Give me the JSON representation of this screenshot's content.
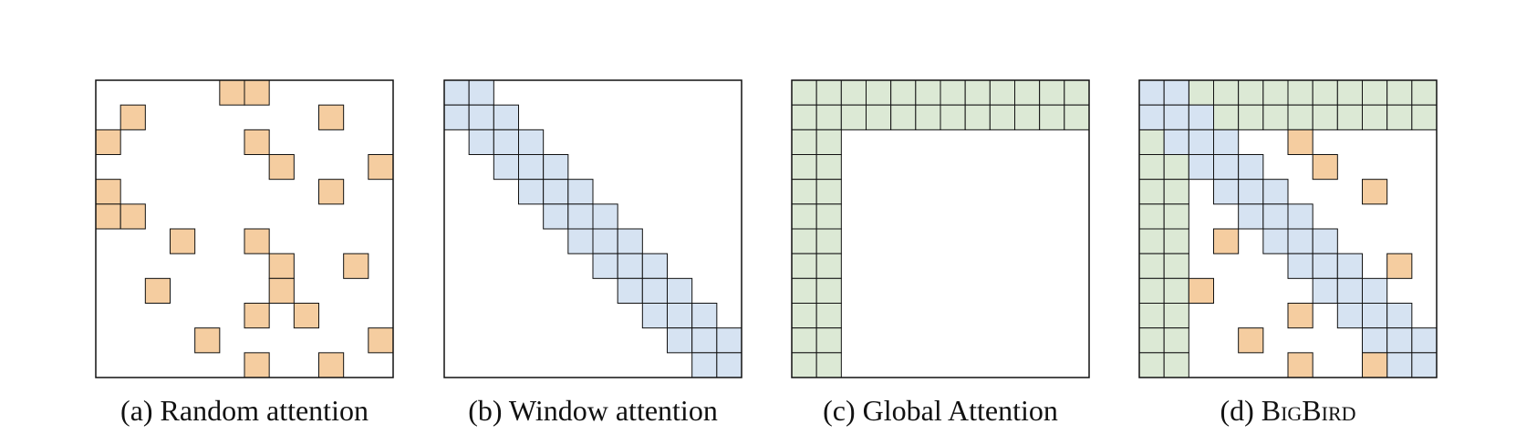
{
  "grid_size": 12,
  "colors": {
    "random": "#f5cda0",
    "window": "#d6e3f2",
    "global": "#dce9d5",
    "cell_stroke": "#111111",
    "frame_stroke": "#111111",
    "background": "#ffffff"
  },
  "panels": [
    {
      "key": "random",
      "caption": {
        "prefix": "(a)",
        "text": "Random attention"
      },
      "cells": {
        "random": [
          [
            0,
            5
          ],
          [
            0,
            6
          ],
          [
            1,
            1
          ],
          [
            1,
            9
          ],
          [
            2,
            0
          ],
          [
            2,
            6
          ],
          [
            3,
            7
          ],
          [
            3,
            11
          ],
          [
            4,
            0
          ],
          [
            4,
            9
          ],
          [
            5,
            0
          ],
          [
            5,
            1
          ],
          [
            6,
            3
          ],
          [
            6,
            6
          ],
          [
            7,
            7
          ],
          [
            7,
            10
          ],
          [
            8,
            2
          ],
          [
            8,
            7
          ],
          [
            9,
            6
          ],
          [
            9,
            8
          ],
          [
            10,
            4
          ],
          [
            10,
            11
          ],
          [
            11,
            6
          ],
          [
            11,
            9
          ]
        ]
      }
    },
    {
      "key": "window",
      "caption": {
        "prefix": "(b)",
        "text": "Window attention"
      },
      "cells": {
        "window": [
          [
            0,
            0
          ],
          [
            0,
            1
          ],
          [
            1,
            0
          ],
          [
            1,
            1
          ],
          [
            1,
            2
          ],
          [
            2,
            1
          ],
          [
            2,
            2
          ],
          [
            2,
            3
          ],
          [
            3,
            2
          ],
          [
            3,
            3
          ],
          [
            3,
            4
          ],
          [
            4,
            3
          ],
          [
            4,
            4
          ],
          [
            4,
            5
          ],
          [
            5,
            4
          ],
          [
            5,
            5
          ],
          [
            5,
            6
          ],
          [
            6,
            5
          ],
          [
            6,
            6
          ],
          [
            6,
            7
          ],
          [
            7,
            6
          ],
          [
            7,
            7
          ],
          [
            7,
            8
          ],
          [
            8,
            7
          ],
          [
            8,
            8
          ],
          [
            8,
            9
          ],
          [
            9,
            8
          ],
          [
            9,
            9
          ],
          [
            9,
            10
          ],
          [
            10,
            9
          ],
          [
            10,
            10
          ],
          [
            10,
            11
          ],
          [
            11,
            10
          ],
          [
            11,
            11
          ]
        ]
      }
    },
    {
      "key": "global",
      "caption": {
        "prefix": "(c)",
        "text": "Global Attention"
      },
      "cells": {
        "global_rows": [
          0,
          1
        ],
        "global_cols": [
          0,
          1
        ]
      }
    },
    {
      "key": "bigbird",
      "caption": {
        "prefix": "(d)",
        "text_smallcaps": "BigBird"
      },
      "cells": {
        "global_rows": [
          0,
          1
        ],
        "global_cols": [
          0,
          1
        ],
        "window": [
          [
            0,
            0
          ],
          [
            0,
            1
          ],
          [
            1,
            0
          ],
          [
            1,
            1
          ],
          [
            1,
            2
          ],
          [
            2,
            1
          ],
          [
            2,
            2
          ],
          [
            2,
            3
          ],
          [
            3,
            2
          ],
          [
            3,
            3
          ],
          [
            3,
            4
          ],
          [
            4,
            3
          ],
          [
            4,
            4
          ],
          [
            4,
            5
          ],
          [
            5,
            4
          ],
          [
            5,
            5
          ],
          [
            5,
            6
          ],
          [
            6,
            5
          ],
          [
            6,
            6
          ],
          [
            6,
            7
          ],
          [
            7,
            6
          ],
          [
            7,
            7
          ],
          [
            7,
            8
          ],
          [
            8,
            7
          ],
          [
            8,
            8
          ],
          [
            8,
            9
          ],
          [
            9,
            8
          ],
          [
            9,
            9
          ],
          [
            9,
            10
          ],
          [
            10,
            9
          ],
          [
            10,
            10
          ],
          [
            10,
            11
          ],
          [
            11,
            10
          ],
          [
            11,
            11
          ]
        ],
        "random": [
          [
            2,
            6
          ],
          [
            3,
            7
          ],
          [
            4,
            9
          ],
          [
            6,
            3
          ],
          [
            7,
            10
          ],
          [
            8,
            2
          ],
          [
            9,
            6
          ],
          [
            10,
            4
          ],
          [
            11,
            6
          ],
          [
            11,
            9
          ]
        ]
      }
    }
  ]
}
